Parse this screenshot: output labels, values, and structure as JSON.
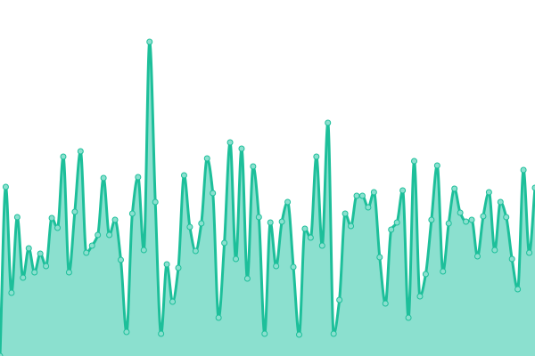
{
  "chart_data": {
    "type": "area",
    "title": "",
    "xlabel": "",
    "ylabel": "",
    "grid": false,
    "legend": "none",
    "curve": "smooth",
    "markers": true,
    "ylim": [
      0,
      400
    ],
    "colors": {
      "line": "#1dbf9a",
      "fill": "#8be0cf",
      "marker_fill": "#8be0cf"
    },
    "values": [
      0,
      190,
      71,
      156,
      88,
      121,
      94,
      115,
      101,
      155,
      144,
      224,
      94,
      162,
      230,
      116,
      124,
      136,
      200,
      136,
      153,
      108,
      27,
      160,
      201,
      119,
      353,
      173,
      25,
      103,
      61,
      99,
      203,
      145,
      118,
      149,
      222,
      183,
      43,
      127,
      240,
      109,
      233,
      87,
      213,
      156,
      25,
      150,
      101,
      151,
      173,
      100,
      24,
      143,
      133,
      224,
      124,
      262,
      25,
      63,
      160,
      146,
      180,
      180,
      167,
      184,
      111,
      59,
      142,
      150,
      186,
      43,
      219,
      67,
      92,
      153,
      214,
      95,
      149,
      188,
      161,
      151,
      153,
      112,
      157,
      184,
      119,
      173,
      156,
      109,
      75,
      209,
      116,
      189
    ]
  }
}
